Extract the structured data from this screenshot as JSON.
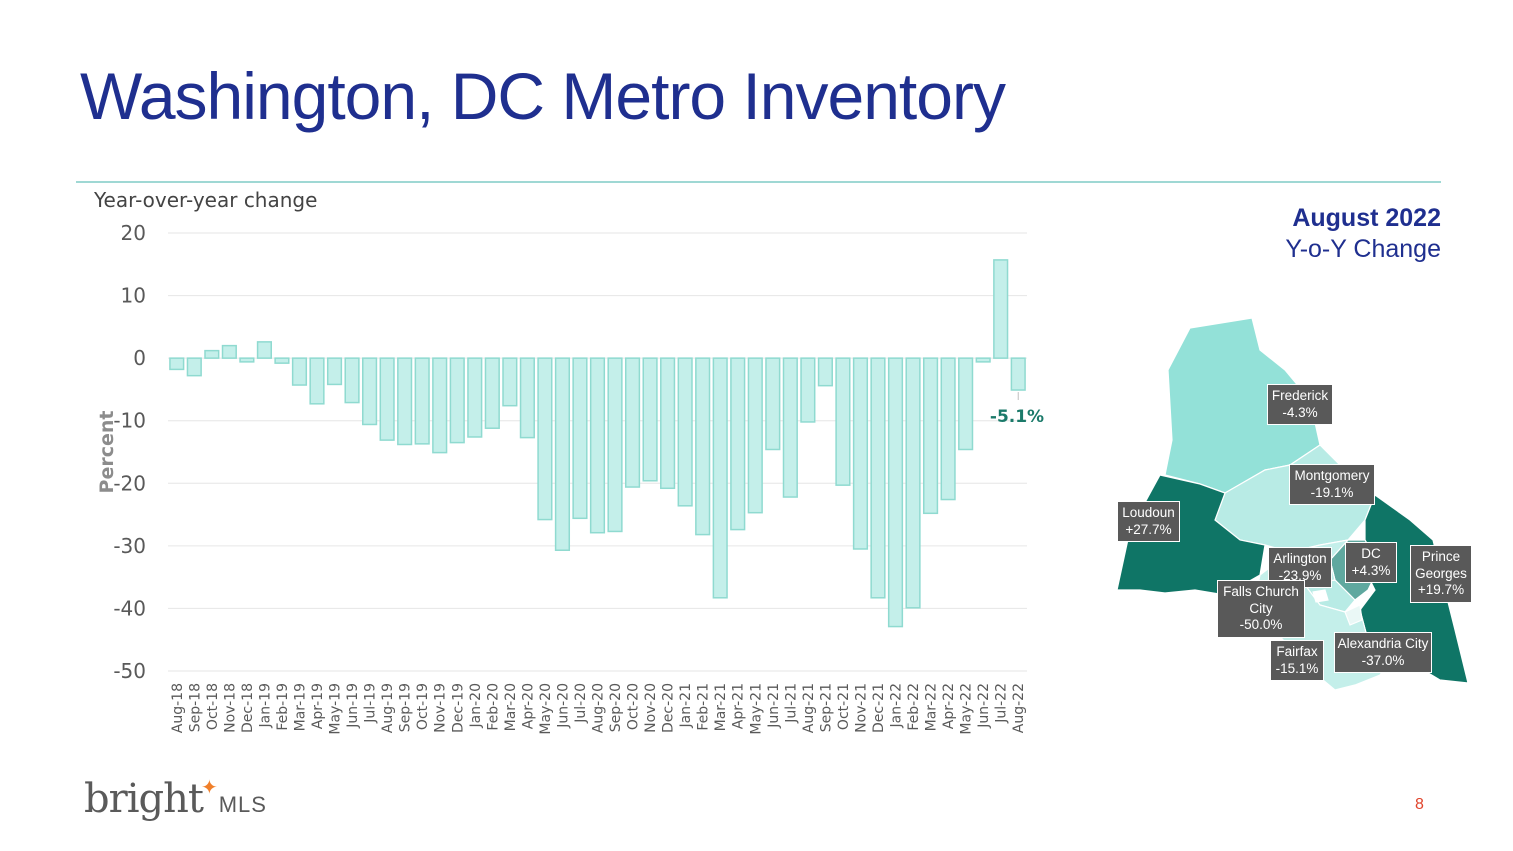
{
  "title": "Washington, DC Metro Inventory",
  "page_number": "8",
  "logo": {
    "word": "bright",
    "suffix": "MLS"
  },
  "colors": {
    "title": "#1f2f8f",
    "bar_fill": "#c4efea",
    "bar_stroke": "#8fdad0",
    "callout": "#1b7a6a",
    "label_box": "#595959",
    "accent_orange": "#f07f2a",
    "page_number": "#e0442c"
  },
  "chart_data": {
    "type": "bar",
    "subtitle": "Year-over-year change",
    "xlabel": "",
    "ylabel": "Percent",
    "ylim": [
      -50,
      20
    ],
    "yticks": [
      20,
      10,
      0,
      -10,
      -20,
      -30,
      -40,
      -50
    ],
    "grid": true,
    "callout": "-5.1%",
    "categories": [
      "Aug-18",
      "Sep-18",
      "Oct-18",
      "Nov-18",
      "Dec-18",
      "Jan-19",
      "Feb-19",
      "Mar-19",
      "Apr-19",
      "May-19",
      "Jun-19",
      "Jul-19",
      "Aug-19",
      "Sep-19",
      "Oct-19",
      "Nov-19",
      "Dec-19",
      "Jan-20",
      "Feb-20",
      "Mar-20",
      "Apr-20",
      "May-20",
      "Jun-20",
      "Jul-20",
      "Aug-20",
      "Sep-20",
      "Oct-20",
      "Nov-20",
      "Dec-20",
      "Jan-21",
      "Feb-21",
      "Mar-21",
      "Apr-21",
      "May-21",
      "Jun-21",
      "Jul-21",
      "Aug-21",
      "Sep-21",
      "Oct-21",
      "Nov-21",
      "Dec-21",
      "Jan-22",
      "Feb-22",
      "Mar-22",
      "Apr-22",
      "May-22",
      "Jun-22",
      "Jul-22",
      "Aug-22"
    ],
    "values": [
      -1.8,
      -2.8,
      1.2,
      2.0,
      -0.6,
      2.6,
      -0.8,
      -4.3,
      -7.3,
      -4.2,
      -7.1,
      -10.6,
      -13.1,
      -13.8,
      -13.7,
      -15.1,
      -13.5,
      -12.6,
      -11.2,
      -7.6,
      -12.7,
      -25.8,
      -30.7,
      -25.6,
      -27.9,
      -27.7,
      -20.6,
      -19.6,
      -20.8,
      -23.6,
      -28.2,
      -38.3,
      -27.4,
      -24.7,
      -14.6,
      -22.2,
      -10.2,
      -4.4,
      -20.3,
      -30.5,
      -38.3,
      -42.9,
      -39.9,
      -24.8,
      -22.6,
      -14.6,
      -0.6,
      15.7,
      -5.1
    ]
  },
  "map": {
    "heading": "August 2022",
    "subheading": "Y-o-Y Change",
    "regions": [
      {
        "id": "frederick",
        "name": "Frederick",
        "value": "-4.3%",
        "fill": "#93e1d8"
      },
      {
        "id": "montgomery",
        "name": "Montgomery",
        "value": "-19.1%",
        "fill": "#b8ebe5"
      },
      {
        "id": "loudoun",
        "name": "Loudoun",
        "value": "+27.7%",
        "fill": "#0f7566"
      },
      {
        "id": "prince-georges",
        "name": "Prince Georges",
        "value": "+19.7%",
        "fill": "#0f7566"
      },
      {
        "id": "dc",
        "name": "DC",
        "value": "+4.3%",
        "fill": "#5fa89f"
      },
      {
        "id": "arlington",
        "name": "Arlington",
        "value": "-23.9%",
        "fill": "#b8ebe5"
      },
      {
        "id": "falls-church",
        "name": "Falls Church City",
        "value": "-50.0%",
        "fill": "#ffffff"
      },
      {
        "id": "fairfax",
        "name": "Fairfax",
        "value": "-15.1%",
        "fill": "#c4efea"
      },
      {
        "id": "alexandria",
        "name": "Alexandria City",
        "value": "-37.0%",
        "fill": "#eaf8f6"
      }
    ]
  }
}
